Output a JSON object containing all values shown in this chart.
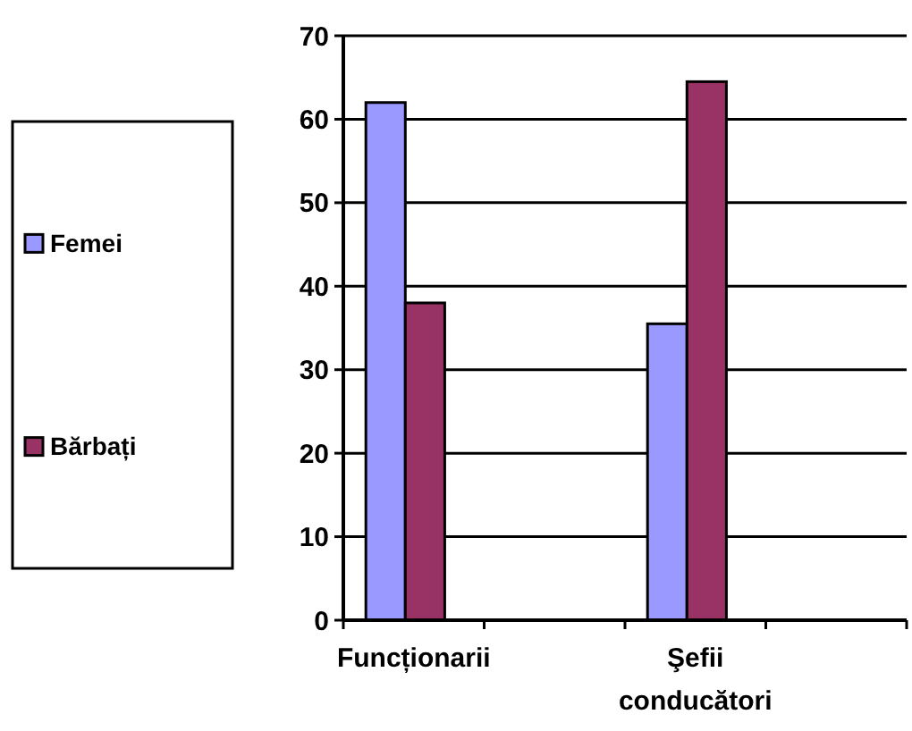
{
  "chart_data": {
    "type": "bar",
    "categories": [
      "Funcționarii",
      null,
      "Şefii conducători",
      null
    ],
    "series": [
      {
        "name": "Femei",
        "color": "#9999ff",
        "values": [
          62,
          null,
          35.5,
          null
        ]
      },
      {
        "name": "Bărbați",
        "color": "#993366",
        "values": [
          38,
          null,
          64.5,
          null
        ]
      }
    ],
    "ylim": [
      0,
      70
    ],
    "yticks": [
      0,
      10,
      20,
      30,
      40,
      50,
      60,
      70
    ],
    "grid": "y",
    "legend": "left"
  }
}
